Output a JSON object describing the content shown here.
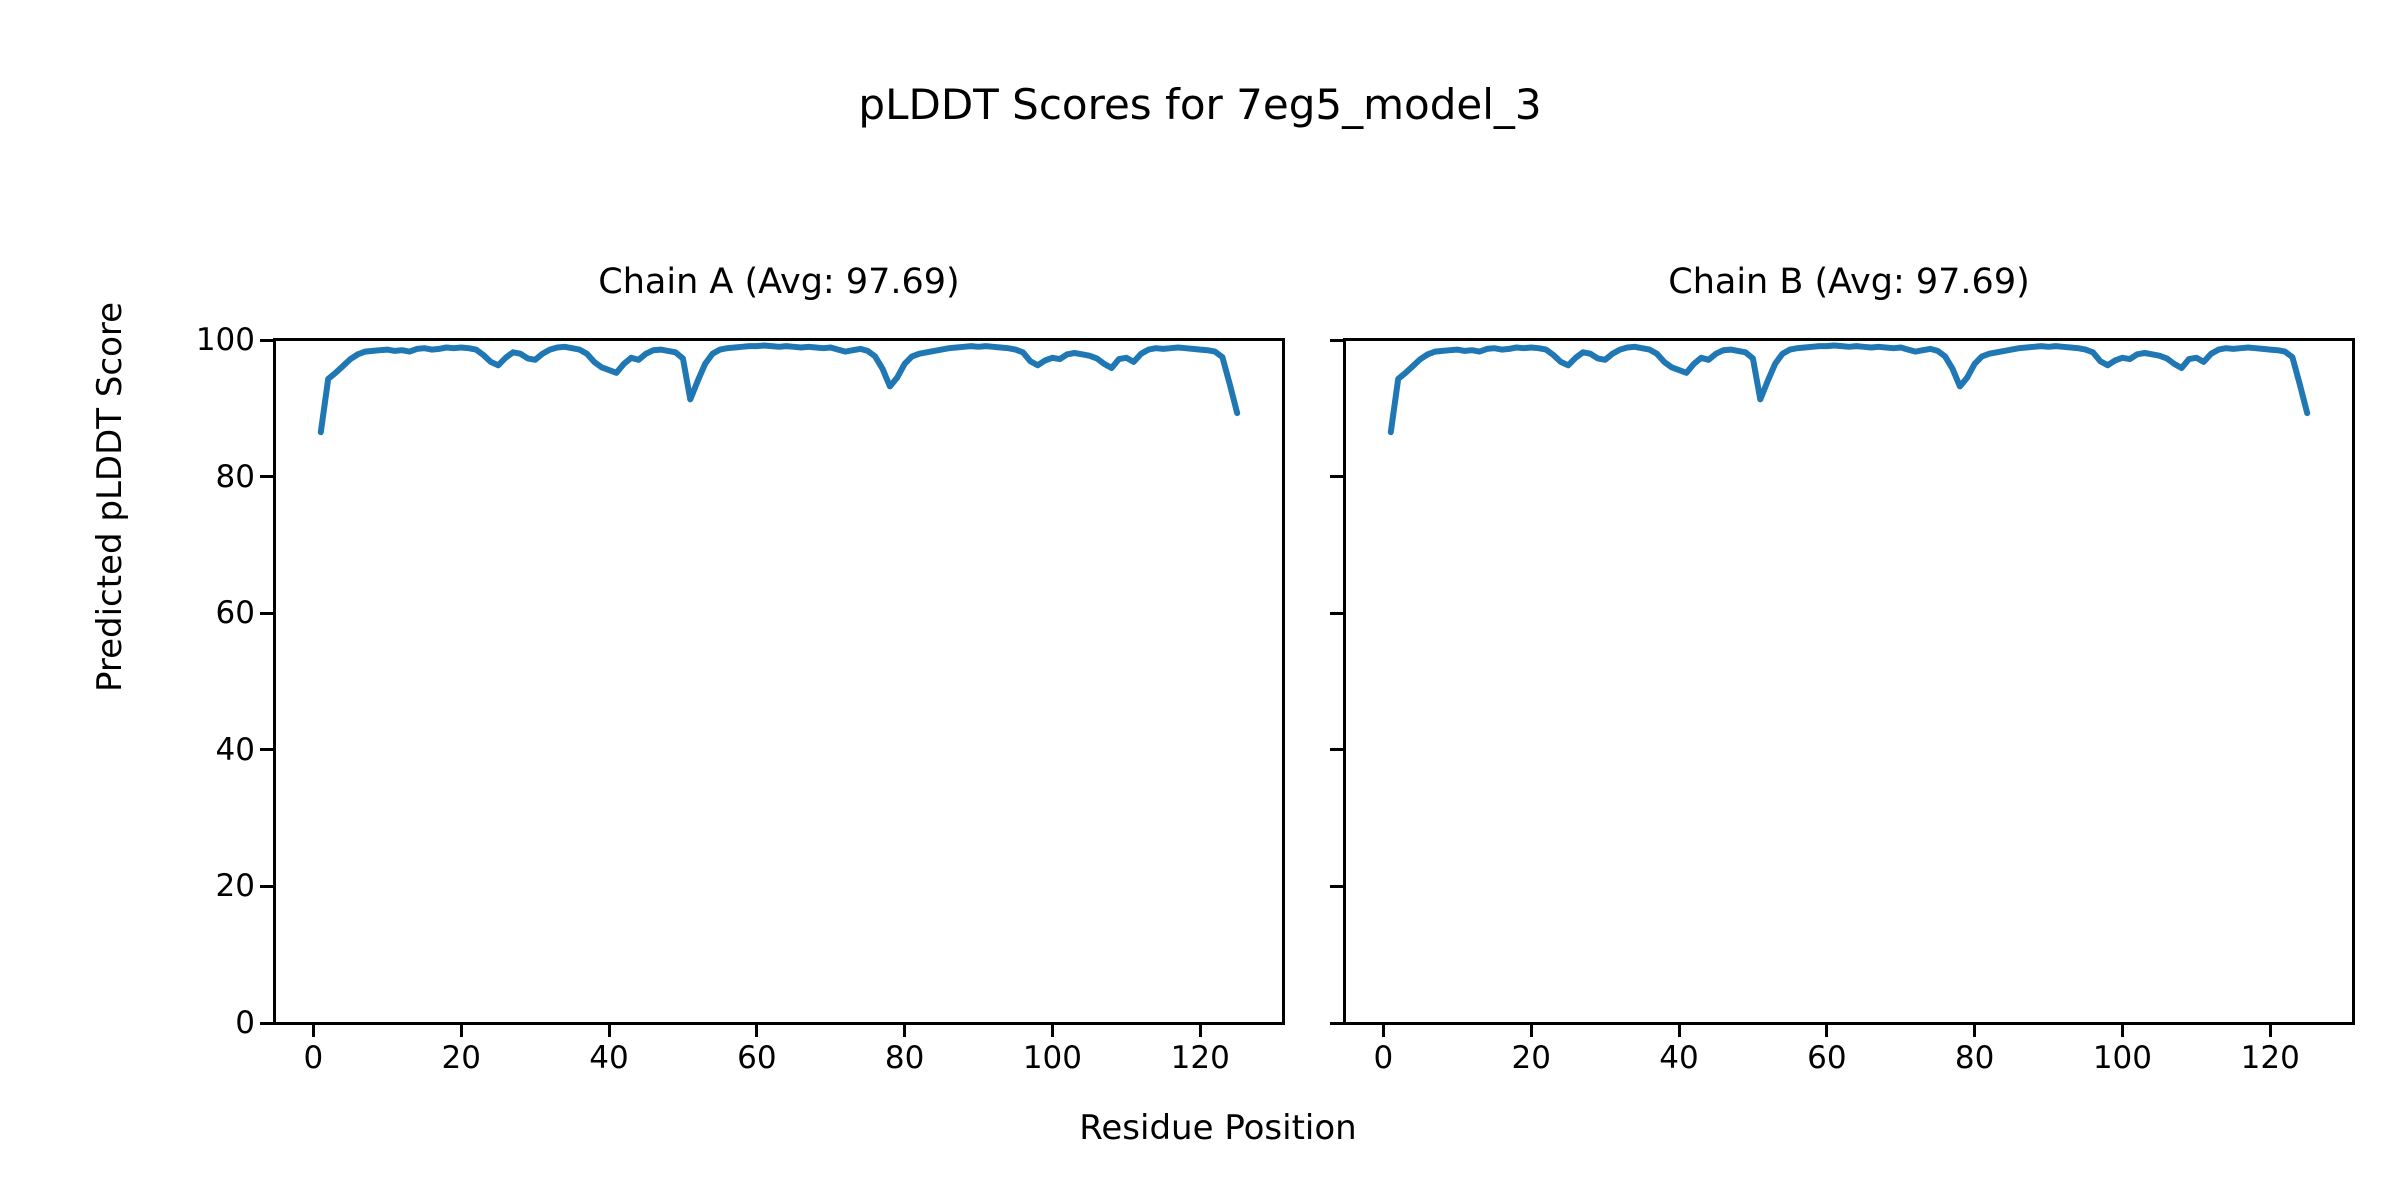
{
  "figure": {
    "suptitle": "pLDDT Scores for 7eg5_model_3",
    "xlabel": "Residue Position",
    "ylabel": "Predicted pLDDT Score",
    "background_color": "#ffffff",
    "text_color": "#000000"
  },
  "chart_data": [
    {
      "type": "line",
      "title": "Chain A (Avg: 97.69)",
      "chain": "A",
      "avg": 97.69,
      "xlabel": "Residue Position",
      "ylabel": "Predicted pLDDT Score",
      "xlim": [
        -5.2,
        131.2
      ],
      "ylim": [
        0,
        100
      ],
      "xticks": [
        0,
        20,
        40,
        60,
        80,
        100,
        120
      ],
      "yticks": [
        0,
        20,
        40,
        60,
        80,
        100
      ],
      "show_ytick_labels": true,
      "grid": false,
      "legend": "none",
      "series": [
        {
          "name": "pLDDT",
          "color": "#1f77b4",
          "x_start": 1,
          "x_step": 1,
          "values": [
            86.5,
            94.3,
            95.2,
            96.2,
            97.2,
            97.9,
            98.3,
            98.4,
            98.5,
            98.6,
            98.4,
            98.5,
            98.3,
            98.7,
            98.8,
            98.6,
            98.7,
            98.9,
            98.8,
            98.9,
            98.8,
            98.6,
            97.8,
            96.8,
            96.3,
            97.4,
            98.2,
            98.0,
            97.3,
            97.1,
            98.0,
            98.6,
            98.9,
            99.0,
            98.8,
            98.6,
            98.0,
            96.8,
            96.0,
            95.6,
            95.2,
            96.5,
            97.4,
            97.1,
            98.0,
            98.5,
            98.6,
            98.4,
            98.2,
            97.3,
            91.3,
            94.0,
            96.5,
            98.0,
            98.6,
            98.8,
            98.9,
            99.0,
            99.1,
            99.1,
            99.2,
            99.1,
            99.0,
            99.1,
            99.0,
            98.9,
            99.0,
            98.9,
            98.8,
            98.9,
            98.6,
            98.3,
            98.5,
            98.7,
            98.4,
            97.6,
            95.8,
            93.2,
            94.5,
            96.5,
            97.6,
            98.0,
            98.2,
            98.4,
            98.6,
            98.8,
            98.9,
            99.0,
            99.1,
            99.0,
            99.1,
            99.0,
            98.9,
            98.8,
            98.6,
            98.2,
            96.9,
            96.3,
            97.0,
            97.4,
            97.2,
            97.9,
            98.1,
            97.9,
            97.7,
            97.3,
            96.5,
            95.9,
            97.2,
            97.4,
            96.8,
            98.0,
            98.6,
            98.8,
            98.7,
            98.8,
            98.9,
            98.8,
            98.7,
            98.6,
            98.5,
            98.3,
            97.5,
            93.5,
            89.3
          ]
        }
      ]
    },
    {
      "type": "line",
      "title": "Chain B (Avg: 97.69)",
      "chain": "B",
      "avg": 97.69,
      "xlabel": "Residue Position",
      "ylabel": "Predicted pLDDT Score",
      "xlim": [
        -5.2,
        131.2
      ],
      "ylim": [
        0,
        100
      ],
      "xticks": [
        0,
        20,
        40,
        60,
        80,
        100,
        120
      ],
      "yticks": [
        0,
        20,
        40,
        60,
        80,
        100
      ],
      "show_ytick_labels": false,
      "grid": false,
      "legend": "none",
      "series": [
        {
          "name": "pLDDT",
          "color": "#1f77b4",
          "x_start": 1,
          "x_step": 1,
          "values": [
            86.5,
            94.3,
            95.2,
            96.2,
            97.2,
            97.9,
            98.3,
            98.4,
            98.5,
            98.6,
            98.4,
            98.5,
            98.3,
            98.7,
            98.8,
            98.6,
            98.7,
            98.9,
            98.8,
            98.9,
            98.8,
            98.6,
            97.8,
            96.8,
            96.3,
            97.4,
            98.2,
            98.0,
            97.3,
            97.1,
            98.0,
            98.6,
            98.9,
            99.0,
            98.8,
            98.6,
            98.0,
            96.8,
            96.0,
            95.6,
            95.2,
            96.5,
            97.4,
            97.1,
            98.0,
            98.5,
            98.6,
            98.4,
            98.2,
            97.3,
            91.3,
            94.0,
            96.5,
            98.0,
            98.6,
            98.8,
            98.9,
            99.0,
            99.1,
            99.1,
            99.2,
            99.1,
            99.0,
            99.1,
            99.0,
            98.9,
            99.0,
            98.9,
            98.8,
            98.9,
            98.6,
            98.3,
            98.5,
            98.7,
            98.4,
            97.6,
            95.8,
            93.2,
            94.5,
            96.5,
            97.6,
            98.0,
            98.2,
            98.4,
            98.6,
            98.8,
            98.9,
            99.0,
            99.1,
            99.0,
            99.1,
            99.0,
            98.9,
            98.8,
            98.6,
            98.2,
            96.9,
            96.3,
            97.0,
            97.4,
            97.2,
            97.9,
            98.1,
            97.9,
            97.7,
            97.3,
            96.5,
            95.9,
            97.2,
            97.4,
            96.8,
            98.0,
            98.6,
            98.8,
            98.7,
            98.8,
            98.9,
            98.8,
            98.7,
            98.6,
            98.5,
            98.3,
            97.5,
            93.5,
            89.3
          ]
        }
      ]
    }
  ]
}
